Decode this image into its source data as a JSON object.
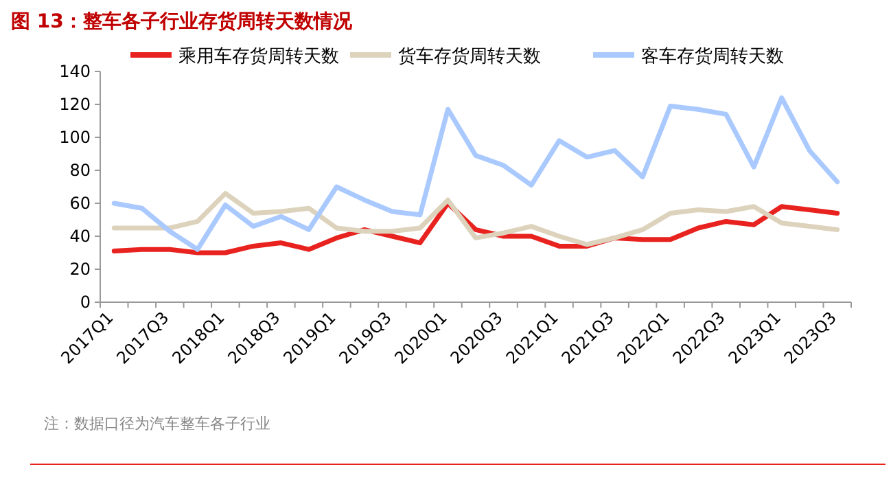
{
  "chart_data": {
    "type": "line",
    "title": "图 13：整车各子行业存货周转天数情况",
    "categories": [
      "2017Q1",
      null,
      "2017Q3",
      null,
      "2018Q1",
      null,
      "2018Q3",
      null,
      "2019Q1",
      null,
      "2019Q3",
      null,
      "2020Q1",
      null,
      "2020Q3",
      null,
      "2021Q1",
      null,
      "2021Q3",
      null,
      "2022Q1",
      null,
      "2022Q3",
      null,
      "2023Q1",
      null,
      "2023Q3"
    ],
    "series": [
      {
        "name": "乘用车存货周转天数",
        "color": "#e8231f",
        "values": [
          31,
          32,
          32,
          30,
          30,
          34,
          36,
          32,
          39,
          44,
          40,
          36,
          60,
          44,
          40,
          40,
          34,
          34,
          39,
          38,
          38,
          45,
          49,
          47,
          58,
          56,
          54
        ]
      },
      {
        "name": "货车存货周转天数",
        "color": "#ddd3bd",
        "values": [
          45,
          45,
          45,
          49,
          66,
          54,
          55,
          57,
          45,
          43,
          43,
          45,
          62,
          39,
          42,
          46,
          40,
          35,
          39,
          44,
          54,
          56,
          55,
          58,
          48,
          46,
          44
        ]
      },
      {
        "name": "客车存货周转天数",
        "color": "#a9c9ff",
        "values": [
          60,
          57,
          43,
          32,
          59,
          46,
          52,
          44,
          70,
          62,
          55,
          53,
          117,
          89,
          83,
          71,
          98,
          88,
          92,
          76,
          119,
          117,
          114,
          82,
          124,
          92,
          73
        ]
      }
    ],
    "ylim": [
      0,
      140
    ],
    "yticks": [
      0,
      20,
      40,
      60,
      80,
      100,
      120,
      140
    ],
    "legend": "top",
    "grid": false,
    "marker": "none",
    "line_style": "solid",
    "annotations": [
      "注：数据口径为汽车整车各子行业"
    ]
  }
}
